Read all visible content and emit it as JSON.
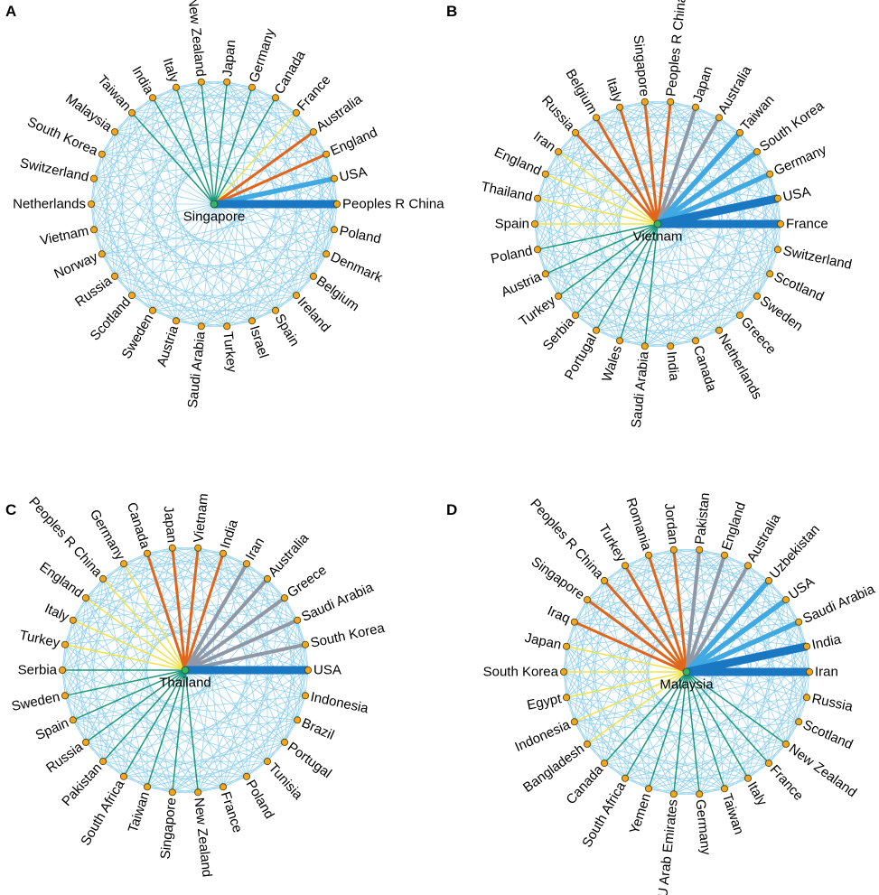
{
  "colors": {
    "mesh": "#86cdef",
    "node_fill": "#f2a51e",
    "node_stroke": "#4a3a00",
    "hub_fill": "#33b36b",
    "tiers": {
      "t1": "#1a78c2",
      "t2": "#41a9e1",
      "t3": "#8f98a6",
      "t4": "#e0661c",
      "t5": "#f0e34a",
      "t6": "#1a9a7c"
    }
  },
  "panels": [
    {
      "letter": "A",
      "hub": "Singapore",
      "nodes": [
        {
          "name": "Peoples R China",
          "tier": "t1"
        },
        {
          "name": "USA",
          "tier": "t2"
        },
        {
          "name": "England",
          "tier": "t4"
        },
        {
          "name": "Australia",
          "tier": "t4"
        },
        {
          "name": "France",
          "tier": "t5"
        },
        {
          "name": "Canada",
          "tier": "t6"
        },
        {
          "name": "Germany",
          "tier": "t6"
        },
        {
          "name": "Japan",
          "tier": "t6"
        },
        {
          "name": "New Zealand",
          "tier": "t6"
        },
        {
          "name": "Italy",
          "tier": "t6"
        },
        {
          "name": "India",
          "tier": "t6"
        },
        {
          "name": "Taiwan",
          "tier": "t6"
        },
        {
          "name": "Malaysia",
          "tier": null
        },
        {
          "name": "South Korea",
          "tier": null
        },
        {
          "name": "Switzerland",
          "tier": null
        },
        {
          "name": "Netherlands",
          "tier": null
        },
        {
          "name": "Vietnam",
          "tier": null
        },
        {
          "name": "Norway",
          "tier": null
        },
        {
          "name": "Russia",
          "tier": null
        },
        {
          "name": "Scotland",
          "tier": null
        },
        {
          "name": "Sweden",
          "tier": null
        },
        {
          "name": "Austria",
          "tier": null
        },
        {
          "name": "Saudi Arabia",
          "tier": null
        },
        {
          "name": "Turkey",
          "tier": null
        },
        {
          "name": "Israel",
          "tier": null
        },
        {
          "name": "Spain",
          "tier": null
        },
        {
          "name": "Ireland",
          "tier": null
        },
        {
          "name": "Belgium",
          "tier": null
        },
        {
          "name": "Denmark",
          "tier": null
        },
        {
          "name": "Poland",
          "tier": null
        }
      ]
    },
    {
      "letter": "B",
      "hub": "Vietnam",
      "nodes": [
        {
          "name": "France",
          "tier": "t1"
        },
        {
          "name": "USA",
          "tier": "t1"
        },
        {
          "name": "Germany",
          "tier": "t2"
        },
        {
          "name": "South Korea",
          "tier": "t2"
        },
        {
          "name": "Taiwan",
          "tier": "t2"
        },
        {
          "name": "Australia",
          "tier": "t3"
        },
        {
          "name": "Japan",
          "tier": "t3"
        },
        {
          "name": "Peoples R China",
          "tier": "t4"
        },
        {
          "name": "Singapore",
          "tier": "t4"
        },
        {
          "name": "Italy",
          "tier": "t4"
        },
        {
          "name": "Belgium",
          "tier": "t4"
        },
        {
          "name": "Russia",
          "tier": "t4"
        },
        {
          "name": "Iran",
          "tier": "t5"
        },
        {
          "name": "England",
          "tier": "t5"
        },
        {
          "name": "Thailand",
          "tier": "t5"
        },
        {
          "name": "Spain",
          "tier": "t5"
        },
        {
          "name": "Poland",
          "tier": "t6"
        },
        {
          "name": "Austria",
          "tier": "t6"
        },
        {
          "name": "Turkey",
          "tier": "t6"
        },
        {
          "name": "Serbia",
          "tier": "t6"
        },
        {
          "name": "Portugal",
          "tier": "t6"
        },
        {
          "name": "Wales",
          "tier": "t6"
        },
        {
          "name": "Saudi Arabia",
          "tier": "t6"
        },
        {
          "name": "India",
          "tier": null
        },
        {
          "name": "Canada",
          "tier": null
        },
        {
          "name": "Netherlands",
          "tier": null
        },
        {
          "name": "Greece",
          "tier": null
        },
        {
          "name": "Sweden",
          "tier": null
        },
        {
          "name": "Scotland",
          "tier": null
        },
        {
          "name": "Switzerland",
          "tier": null
        }
      ]
    },
    {
      "letter": "C",
      "hub": "Thailand",
      "nodes": [
        {
          "name": "USA",
          "tier": "t1"
        },
        {
          "name": "South Korea",
          "tier": "t3"
        },
        {
          "name": "Saudi Arabia",
          "tier": "t3"
        },
        {
          "name": "Greece",
          "tier": "t3"
        },
        {
          "name": "Australia",
          "tier": "t3"
        },
        {
          "name": "Iran",
          "tier": "t3"
        },
        {
          "name": "India",
          "tier": "t4"
        },
        {
          "name": "Vietnam",
          "tier": "t4"
        },
        {
          "name": "Japan",
          "tier": "t4"
        },
        {
          "name": "Canada",
          "tier": "t4"
        },
        {
          "name": "Germany",
          "tier": "t5"
        },
        {
          "name": "Peoples R China",
          "tier": "t5"
        },
        {
          "name": "England",
          "tier": "t5"
        },
        {
          "name": "Italy",
          "tier": "t5"
        },
        {
          "name": "Turkey",
          "tier": "t5"
        },
        {
          "name": "Serbia",
          "tier": "t6"
        },
        {
          "name": "Sweden",
          "tier": "t6"
        },
        {
          "name": "Spain",
          "tier": "t6"
        },
        {
          "name": "Russia",
          "tier": "t6"
        },
        {
          "name": "Pakistan",
          "tier": "t6"
        },
        {
          "name": "South Africa",
          "tier": "t6"
        },
        {
          "name": "Taiwan",
          "tier": "t6"
        },
        {
          "name": "Singapore",
          "tier": "t6"
        },
        {
          "name": "New Zealand",
          "tier": "t6"
        },
        {
          "name": "France",
          "tier": null
        },
        {
          "name": "Poland",
          "tier": null
        },
        {
          "name": "Tunisia",
          "tier": null
        },
        {
          "name": "Portugal",
          "tier": null
        },
        {
          "name": "Brazil",
          "tier": null
        },
        {
          "name": "Indonesia",
          "tier": null
        }
      ]
    },
    {
      "letter": "D",
      "hub": "Malaysia",
      "nodes": [
        {
          "name": "Iran",
          "tier": "t1"
        },
        {
          "name": "India",
          "tier": "t1"
        },
        {
          "name": "Saudi Arabia",
          "tier": "t2"
        },
        {
          "name": "USA",
          "tier": "t2"
        },
        {
          "name": "Uzbekistan",
          "tier": "t2"
        },
        {
          "name": "Australia",
          "tier": "t3"
        },
        {
          "name": "England",
          "tier": "t3"
        },
        {
          "name": "Pakistan",
          "tier": "t3"
        },
        {
          "name": "Jordan",
          "tier": "t4"
        },
        {
          "name": "Romania",
          "tier": "t4"
        },
        {
          "name": "Turkey",
          "tier": "t4"
        },
        {
          "name": "Peoples R China",
          "tier": "t4"
        },
        {
          "name": "Singapore",
          "tier": "t4"
        },
        {
          "name": "Iraq",
          "tier": "t4"
        },
        {
          "name": "Japan",
          "tier": "t5"
        },
        {
          "name": "South Korea",
          "tier": "t5"
        },
        {
          "name": "Egypt",
          "tier": "t5"
        },
        {
          "name": "Indonesia",
          "tier": "t5"
        },
        {
          "name": "Bangladesh",
          "tier": "t5"
        },
        {
          "name": "Canada",
          "tier": "t6"
        },
        {
          "name": "South Africa",
          "tier": "t6"
        },
        {
          "name": "Yemen",
          "tier": "t6"
        },
        {
          "name": "U Arab Emirates",
          "tier": "t6"
        },
        {
          "name": "Germany",
          "tier": "t6"
        },
        {
          "name": "Taiwan",
          "tier": "t6"
        },
        {
          "name": "Italy",
          "tier": "t6"
        },
        {
          "name": "France",
          "tier": "t6"
        },
        {
          "name": "New Zealand",
          "tier": "t6"
        },
        {
          "name": "Scotland",
          "tier": null
        },
        {
          "name": "Russia",
          "tier": null
        }
      ]
    }
  ]
}
